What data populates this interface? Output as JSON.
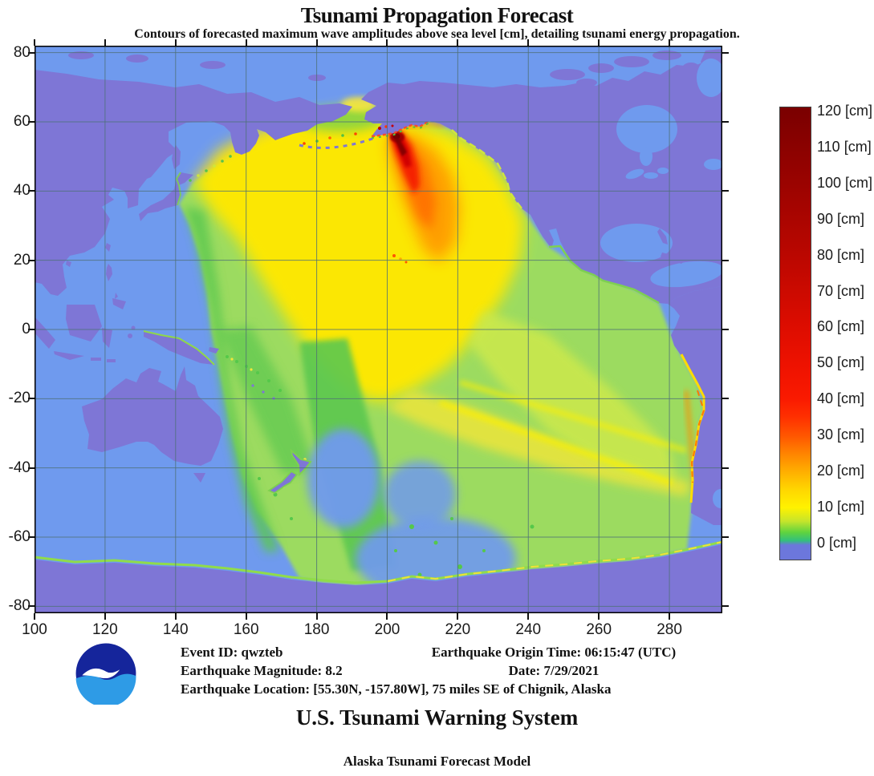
{
  "header": {
    "title": "Tsunami Propagation Forecast",
    "subtitle": "Contours of forecasted maximum wave amplitudes above sea level [cm], detailing tsunami energy propagation."
  },
  "chart_data": {
    "type": "heatmap",
    "title": "Tsunami Propagation Forecast",
    "subtitle": "Contours of forecasted maximum wave amplitudes above sea level [cm], detailing tsunami energy propagation.",
    "x_ticks": [
      100,
      120,
      140,
      160,
      180,
      200,
      220,
      240,
      260,
      280
    ],
    "x_range": [
      100,
      295
    ],
    "y_ticks": [
      80,
      60,
      40,
      20,
      0,
      -20,
      -40,
      -60,
      -80
    ],
    "y_range": [
      -82,
      82
    ],
    "grid": true,
    "ocean_color": "#6F9AEE",
    "land_color": "#7E76D6",
    "grid_color": "#4E7076",
    "epicenter": {
      "lat": 55.3,
      "lon": -157.8,
      "max_amplitude_cm": 120
    },
    "colorbar": {
      "values": [
        120,
        110,
        100,
        90,
        80,
        70,
        60,
        50,
        40,
        30,
        20,
        10,
        0
      ],
      "labels": [
        "120 [cm]",
        "110 [cm]",
        "100 [cm]",
        "90 [cm]",
        "80 [cm]",
        "70 [cm]",
        "60 [cm]",
        "50 [cm]",
        "40 [cm]",
        "30 [cm]",
        "20 [cm]",
        "10 [cm]",
        "0 [cm]"
      ],
      "gradient_stops": [
        {
          "p": 0,
          "c": "#6C77DC"
        },
        {
          "p": 3.2,
          "c": "#6C77DC"
        },
        {
          "p": 4.2,
          "c": "#33C07C"
        },
        {
          "p": 6.0,
          "c": "#5FD33F"
        },
        {
          "p": 8.5,
          "c": "#C6E52B"
        },
        {
          "p": 11.5,
          "c": "#FFF200"
        },
        {
          "p": 15.5,
          "c": "#FFD600"
        },
        {
          "p": 19.5,
          "c": "#FFAE00"
        },
        {
          "p": 23.5,
          "c": "#FF8300"
        },
        {
          "p": 27.5,
          "c": "#FF5500"
        },
        {
          "p": 31.5,
          "c": "#FF3000"
        },
        {
          "p": 35.5,
          "c": "#FA1A00"
        },
        {
          "p": 43,
          "c": "#EE1200"
        },
        {
          "p": 51,
          "c": "#DE0D00"
        },
        {
          "p": 67,
          "c": "#BB0700"
        },
        {
          "p": 83,
          "c": "#9B0300"
        },
        {
          "p": 100,
          "c": "#7A0000"
        }
      ]
    }
  },
  "footer": {
    "left_lines": [
      "Event ID: qwzteb",
      "Earthquake Magnitude: 8.2",
      "Earthquake Location: [55.30N, -157.80W], 75 miles SE of Chignik, Alaska"
    ],
    "right_lines": [
      "Earthquake Origin Time: 06:15:47 (UTC)",
      "Date: 7/29/2021"
    ]
  },
  "branding": {
    "logo_text": "NOAA",
    "system_title": "U.S. Tsunami Warning System",
    "model_title": "Alaska Tsunami Forecast Model"
  }
}
